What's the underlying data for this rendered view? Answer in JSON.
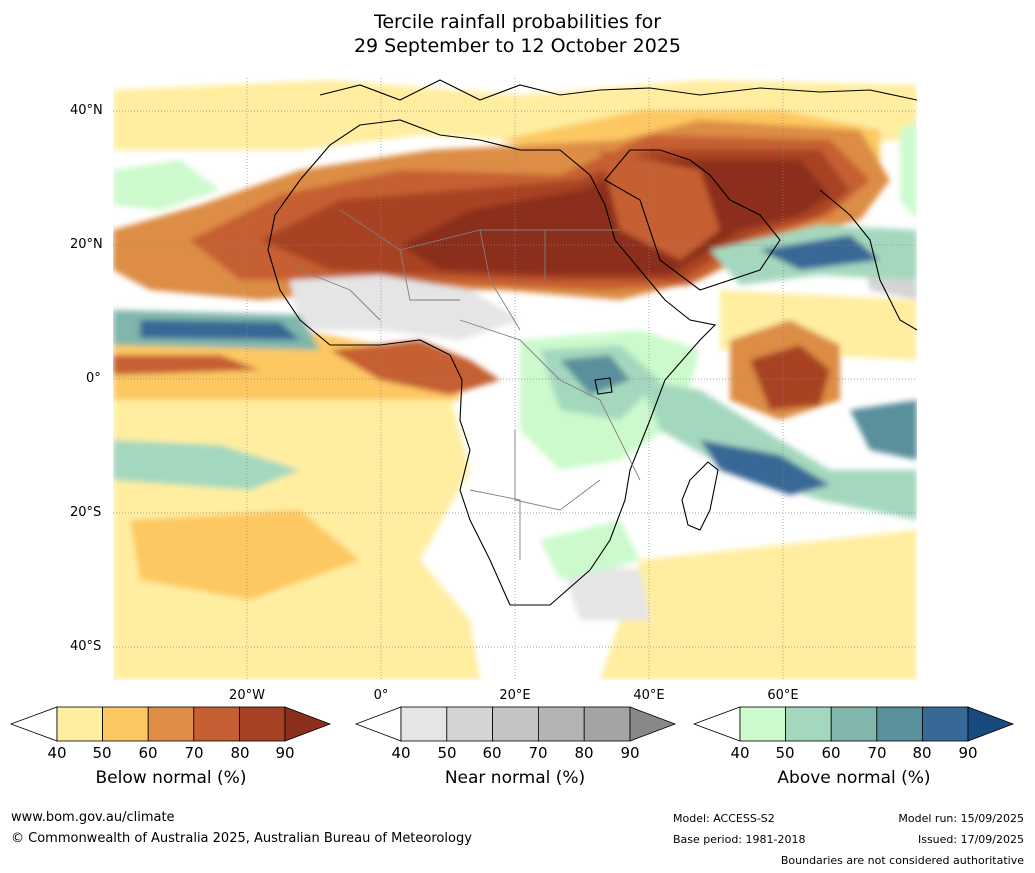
{
  "title": {
    "line1": "Tercile rainfall probabilities for",
    "line2": "29 September to 12 October 2025"
  },
  "map": {
    "lat_labels": [
      "40°N",
      "20°N",
      "0°",
      "20°S",
      "40°S"
    ],
    "lon_labels": [
      "20°W",
      "0°",
      "20°E",
      "40°E",
      "60°E"
    ],
    "region": "Africa",
    "colors": {
      "below": [
        "#ffeea0",
        "#fdc862",
        "#dd8d45",
        "#c65f33",
        "#a84224",
        "#8c2f1d"
      ],
      "near": [
        "#e5e5e5",
        "#d4d4d4",
        "#c4c4c4",
        "#b4b4b4",
        "#a4a4a4",
        "#888888"
      ],
      "above": [
        "#ccfacc",
        "#a4d8be",
        "#80b6ac",
        "#5a8f9c",
        "#376896",
        "#184a7e"
      ]
    }
  },
  "colorbars": [
    {
      "name": "below",
      "title": "Below normal (%)",
      "ticks": [
        "40",
        "50",
        "60",
        "70",
        "80",
        "90"
      ],
      "colors": [
        "#ffeea0",
        "#fdc862",
        "#dd8d45",
        "#c65f33",
        "#a84224",
        "#8c2f1d"
      ]
    },
    {
      "name": "near",
      "title": "Near normal (%)",
      "ticks": [
        "40",
        "50",
        "60",
        "70",
        "80",
        "90"
      ],
      "colors": [
        "#e5e5e5",
        "#d4d4d4",
        "#c4c4c4",
        "#b4b4b4",
        "#a4a4a4",
        "#888888"
      ]
    },
    {
      "name": "above",
      "title": "Above normal (%)",
      "ticks": [
        "40",
        "50",
        "60",
        "70",
        "80",
        "90"
      ],
      "colors": [
        "#ccfacc",
        "#a4d8be",
        "#80b6ac",
        "#5a8f9c",
        "#376896",
        "#184a7e"
      ]
    }
  ],
  "footer": {
    "website": "www.bom.gov.au/climate",
    "copyright": "© Commonwealth of Australia 2025, Australian Bureau of Meteorology",
    "model": "Model: ACCESS-S2",
    "base_period": "Base period: 1981-2018",
    "model_run": "Model run: 15/09/2025",
    "issued": "Issued: 17/09/2025",
    "disclaimer": "Boundaries are not considered authoritative"
  }
}
